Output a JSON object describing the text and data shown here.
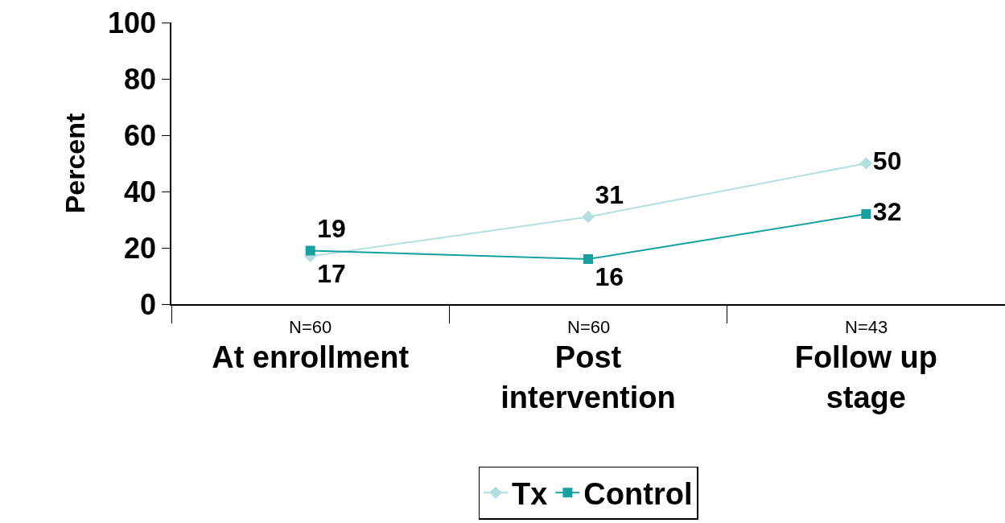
{
  "chart_data": {
    "type": "line",
    "ylabel": "Percent",
    "categories": [
      "At enrollment",
      "Post intervention",
      "Follow up stage"
    ],
    "series": [
      {
        "name": "Tx",
        "color": "#b3dfe0",
        "values": [
          17,
          31,
          50
        ],
        "marker": "diamond"
      },
      {
        "name": "Control",
        "color": "#17a0a0",
        "values": [
          19,
          16,
          32
        ],
        "marker": "square"
      }
    ],
    "ylim": [
      0,
      100
    ],
    "yticks": [
      0,
      20,
      40,
      60,
      80,
      100
    ],
    "grid": false,
    "legend": "bottom",
    "data_labels": true,
    "line_style": "solid",
    "annotations": [
      "N=60",
      "N=60",
      "N=43"
    ]
  }
}
